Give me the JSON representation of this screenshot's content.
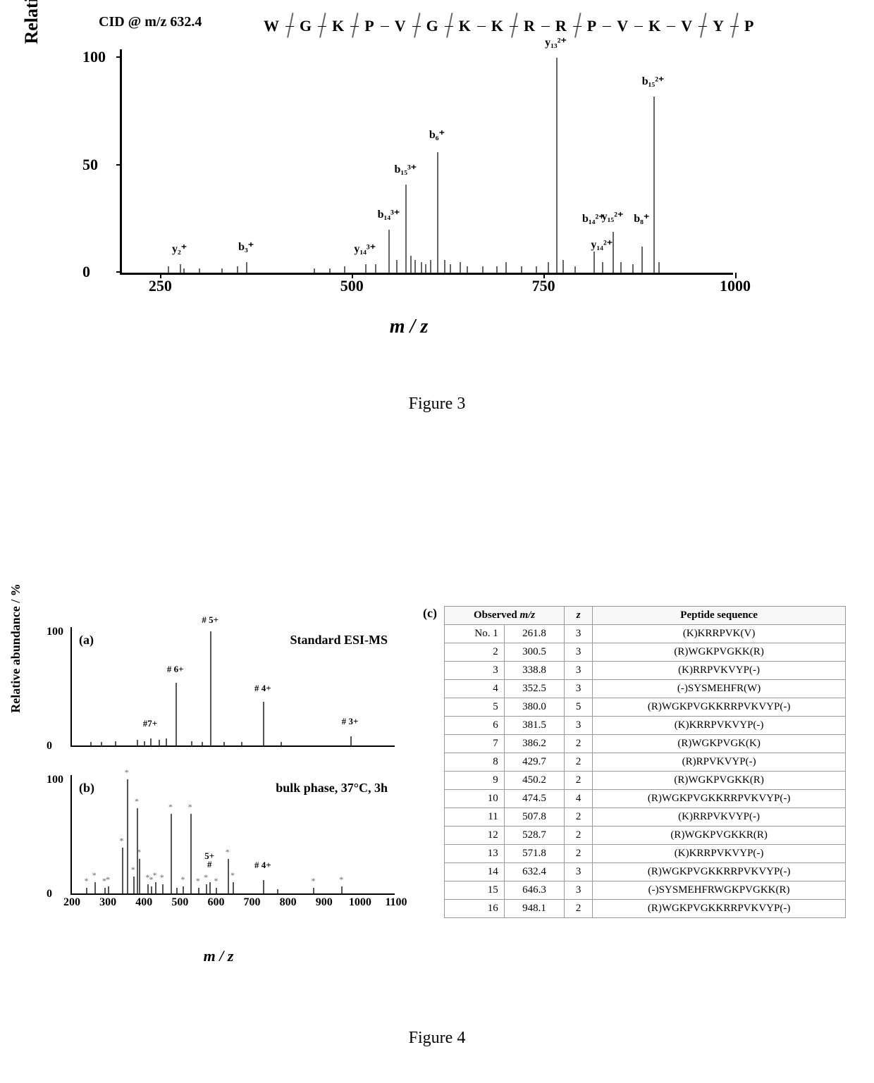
{
  "fig3": {
    "cid_label": "CID @ m/z 632.4",
    "sequence": [
      "W",
      "G",
      "K",
      "P",
      "V",
      "G",
      "K",
      "K",
      "R",
      "R",
      "P",
      "V",
      "K",
      "V",
      "Y",
      "P"
    ],
    "frag_after": [
      0,
      1,
      2,
      4,
      5,
      7,
      9,
      13,
      14
    ],
    "yaxis": "Relative abundance / %",
    "xaxis": "m / z",
    "x_range": [
      200,
      1000
    ],
    "y_range": [
      0,
      105
    ],
    "x_ticks": [
      250,
      500,
      750,
      1000
    ],
    "y_ticks": [
      0,
      50,
      100
    ],
    "peaks": [
      {
        "mz": 260,
        "h": 3
      },
      {
        "mz": 275,
        "h": 4,
        "label": "y₂⁺",
        "lh": 8
      },
      {
        "mz": 350,
        "h": 3
      },
      {
        "mz": 362,
        "h": 5,
        "label": "b₃⁺",
        "lh": 9
      },
      {
        "mz": 280,
        "h": 2
      },
      {
        "mz": 300,
        "h": 2
      },
      {
        "mz": 330,
        "h": 2
      },
      {
        "mz": 450,
        "h": 2
      },
      {
        "mz": 470,
        "h": 2
      },
      {
        "mz": 490,
        "h": 3
      },
      {
        "mz": 517,
        "h": 4,
        "label": "y₁₄³⁺",
        "lh": 8
      },
      {
        "mz": 530,
        "h": 4
      },
      {
        "mz": 548,
        "h": 20,
        "label": "b₁₄³⁺",
        "lh": 24
      },
      {
        "mz": 558,
        "h": 6
      },
      {
        "mz": 570,
        "h": 41,
        "label": "b₁₅³⁺",
        "lh": 45
      },
      {
        "mz": 576,
        "h": 8
      },
      {
        "mz": 582,
        "h": 6
      },
      {
        "mz": 590,
        "h": 5
      },
      {
        "mz": 595,
        "h": 4
      },
      {
        "mz": 602,
        "h": 6
      },
      {
        "mz": 611,
        "h": 56,
        "label": "b₆⁺",
        "lh": 61
      },
      {
        "mz": 620,
        "h": 6
      },
      {
        "mz": 628,
        "h": 4
      },
      {
        "mz": 640,
        "h": 5
      },
      {
        "mz": 650,
        "h": 3
      },
      {
        "mz": 670,
        "h": 3
      },
      {
        "mz": 688,
        "h": 3
      },
      {
        "mz": 700,
        "h": 5
      },
      {
        "mz": 720,
        "h": 3
      },
      {
        "mz": 740,
        "h": 3
      },
      {
        "mz": 755,
        "h": 5
      },
      {
        "mz": 766,
        "h": 100,
        "label": "y₁₃²⁺",
        "lh": 104
      },
      {
        "mz": 775,
        "h": 6
      },
      {
        "mz": 790,
        "h": 3
      },
      {
        "mz": 815,
        "h": 10,
        "label": "b₁₄²⁺",
        "lh": 22
      },
      {
        "mz": 826,
        "h": 5,
        "label": "y₁₄²⁺",
        "lh": 10
      },
      {
        "mz": 840,
        "h": 19,
        "label": "y₁₅²⁺",
        "lh": 23
      },
      {
        "mz": 850,
        "h": 5
      },
      {
        "mz": 866,
        "h": 4
      },
      {
        "mz": 878,
        "h": 12,
        "label": "b₈⁺",
        "lh": 22
      },
      {
        "mz": 893,
        "h": 82,
        "label": "b₁₅²⁺",
        "lh": 86
      },
      {
        "mz": 900,
        "h": 5
      }
    ],
    "caption": "Figure 3"
  },
  "fig4": {
    "yaxis": "Relative abundance / %",
    "xaxis": "m / z",
    "x_range": [
      200,
      1100
    ],
    "y_range": [
      0,
      105
    ],
    "x_ticks": [
      200,
      300,
      400,
      500,
      600,
      700,
      800,
      900,
      1000,
      1100
    ],
    "y_ticks": [
      0,
      100
    ],
    "panel_a": {
      "label": "(a)",
      "title": "Standard ESI-MS",
      "peaks": [
        {
          "mz": 250,
          "h": 3
        },
        {
          "mz": 280,
          "h": 3
        },
        {
          "mz": 320,
          "h": 4
        },
        {
          "mz": 380,
          "h": 5
        },
        {
          "mz": 400,
          "h": 4
        },
        {
          "mz": 417,
          "h": 6,
          "label": "#7+",
          "lh": 14
        },
        {
          "mz": 440,
          "h": 5
        },
        {
          "mz": 460,
          "h": 6
        },
        {
          "mz": 487,
          "h": 55,
          "label": "# 6+",
          "lh": 62
        },
        {
          "mz": 530,
          "h": 4
        },
        {
          "mz": 560,
          "h": 3
        },
        {
          "mz": 584,
          "h": 100,
          "label": "# 5+",
          "lh": 105
        },
        {
          "mz": 620,
          "h": 3
        },
        {
          "mz": 670,
          "h": 3
        },
        {
          "mz": 730,
          "h": 38,
          "label": "# 4+",
          "lh": 45
        },
        {
          "mz": 780,
          "h": 3
        },
        {
          "mz": 972,
          "h": 8,
          "label": "# 3+",
          "lh": 16
        }
      ]
    },
    "panel_b": {
      "label": "(b)",
      "title": "bulk phase, 37°C, 3h",
      "peaks": [
        {
          "mz": 240,
          "h": 5,
          "star": true
        },
        {
          "mz": 262,
          "h": 10,
          "star": true
        },
        {
          "mz": 290,
          "h": 5,
          "star": true
        },
        {
          "mz": 300,
          "h": 6,
          "star": true
        },
        {
          "mz": 338,
          "h": 40,
          "star": true
        },
        {
          "mz": 352,
          "h": 100,
          "star": true
        },
        {
          "mz": 370,
          "h": 15,
          "star": true
        },
        {
          "mz": 380,
          "h": 75,
          "star": true
        },
        {
          "mz": 386,
          "h": 30,
          "star": true
        },
        {
          "mz": 410,
          "h": 8,
          "star": true
        },
        {
          "mz": 420,
          "h": 6,
          "star": true
        },
        {
          "mz": 430,
          "h": 10,
          "star": true
        },
        {
          "mz": 450,
          "h": 8,
          "star": true
        },
        {
          "mz": 474,
          "h": 70,
          "star": true
        },
        {
          "mz": 490,
          "h": 5
        },
        {
          "mz": 508,
          "h": 6,
          "star": true
        },
        {
          "mz": 528,
          "h": 70,
          "star": true
        },
        {
          "mz": 550,
          "h": 5,
          "star": true
        },
        {
          "mz": 572,
          "h": 8,
          "star": true
        },
        {
          "mz": 582,
          "h": 10,
          "label": "5+",
          "lh": 28,
          "hash": true
        },
        {
          "mz": 600,
          "h": 5,
          "star": true
        },
        {
          "mz": 632,
          "h": 30,
          "star": true
        },
        {
          "mz": 646,
          "h": 10,
          "star": true
        },
        {
          "mz": 730,
          "h": 12,
          "label": "# 4+",
          "lh": 20
        },
        {
          "mz": 770,
          "h": 4
        },
        {
          "mz": 870,
          "h": 5,
          "star": true
        },
        {
          "mz": 948,
          "h": 6,
          "star": true
        }
      ]
    },
    "c_label": "(c)",
    "table": {
      "headers": [
        "Observed m/z",
        "z",
        "Peptide sequence"
      ],
      "sub": "No.",
      "rows": [
        [
          "1",
          "261.8",
          "3",
          "(K)KRRPVK(V)"
        ],
        [
          "2",
          "300.5",
          "3",
          "(R)WGKPVGKK(R)"
        ],
        [
          "3",
          "338.8",
          "3",
          "(K)RRPVKVYP(-)"
        ],
        [
          "4",
          "352.5",
          "3",
          "(-)SYSMEHFR(W)"
        ],
        [
          "5",
          "380.0",
          "5",
          "(R)WGKPVGKKRRPVKVYP(-)"
        ],
        [
          "6",
          "381.5",
          "3",
          "(K)KRRPVKVYP(-)"
        ],
        [
          "7",
          "386.2",
          "2",
          "(R)WGKPVGK(K)"
        ],
        [
          "8",
          "429.7",
          "2",
          "(R)RPVKVYP(-)"
        ],
        [
          "9",
          "450.2",
          "2",
          "(R)WGKPVGKK(R)"
        ],
        [
          "10",
          "474.5",
          "4",
          "(R)WGKPVGKKRRPVKVYP(-)"
        ],
        [
          "11",
          "507.8",
          "2",
          "(K)RRPVKVYP(-)"
        ],
        [
          "12",
          "528.7",
          "2",
          "(R)WGKPVGKKR(R)"
        ],
        [
          "13",
          "571.8",
          "2",
          "(K)KRRPVKVYP(-)"
        ],
        [
          "14",
          "632.4",
          "3",
          "(R)WGKPVGKKRRPVKVYP(-)"
        ],
        [
          "15",
          "646.3",
          "3",
          "(-)SYSMEHFRWGKPVGKK(R)"
        ],
        [
          "16",
          "948.1",
          "2",
          "(R)WGKPVGKKRRPVKVYP(-)"
        ]
      ]
    },
    "caption": "Figure 4"
  }
}
